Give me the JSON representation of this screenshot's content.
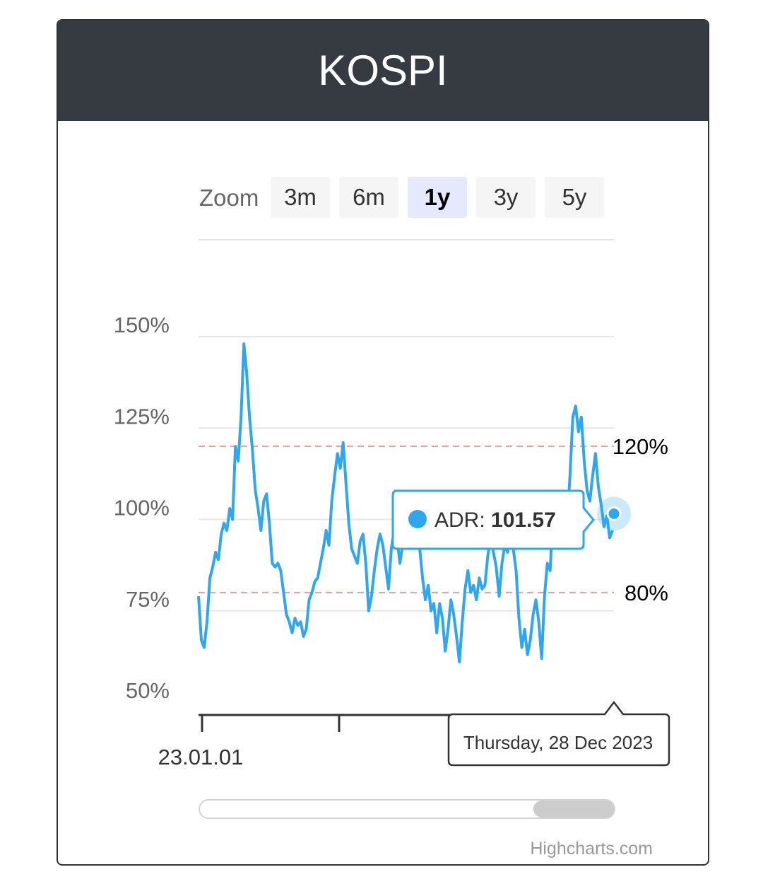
{
  "card": {
    "title": "KOSPI"
  },
  "zoom": {
    "label": "Zoom",
    "buttons": [
      {
        "label": "3m",
        "active": false
      },
      {
        "label": "6m",
        "active": false
      },
      {
        "label": "1y",
        "active": true
      },
      {
        "label": "3y",
        "active": false
      },
      {
        "label": "5y",
        "active": false
      }
    ]
  },
  "credits": "Highcharts.com",
  "tooltip": {
    "series": "ADR",
    "separator": ": ",
    "value": "101.57"
  },
  "date_label": "Thursday, 28 Dec 2023",
  "colors": {
    "series": "#2ea6f0",
    "plotline": "#e7a19a",
    "grid": "#e6e6e6",
    "header": "#363b42"
  },
  "chart_data": {
    "type": "line",
    "series": [
      {
        "name": "ADR",
        "values": [
          79,
          67,
          65,
          72,
          84,
          87,
          91,
          89,
          96,
          99,
          97,
          103,
          100,
          120,
          116,
          128,
          148,
          140,
          128,
          119,
          108,
          103,
          97,
          105,
          107,
          99,
          88,
          87,
          88,
          86,
          80,
          74,
          72,
          69,
          73,
          71,
          72,
          68,
          70,
          78,
          80,
          83,
          84,
          88,
          92,
          97,
          93,
          105,
          112,
          118,
          114,
          121,
          110,
          99,
          92,
          90,
          88,
          94,
          96,
          88,
          75,
          79,
          86,
          92,
          96,
          93,
          87,
          81,
          92,
          97,
          95,
          88,
          93,
          100,
          96,
          98,
          96,
          96,
          92,
          84,
          78,
          82,
          75,
          77,
          69,
          77,
          73,
          64,
          70,
          78,
          74,
          68,
          61,
          72,
          81,
          86,
          80,
          82,
          78,
          84,
          81,
          82,
          90,
          95,
          91,
          87,
          79,
          88,
          93,
          91,
          97,
          92,
          86,
          73,
          65,
          70,
          63,
          67,
          74,
          78,
          72,
          62,
          79,
          88,
          86,
          102,
          96,
          92,
          94,
          93,
          99,
          112,
          128,
          131,
          124,
          128,
          116,
          108,
          105,
          112,
          118,
          109,
          104,
          98,
          101,
          95,
          97
        ]
      }
    ],
    "x_axis": {
      "start_label": "23.01.01",
      "tick_labels": [
        "23.01.01"
      ]
    },
    "y_axis": {
      "tick_labels": [
        "50%",
        "75%",
        "100%",
        "125%",
        "150%"
      ],
      "ticks": [
        50,
        75,
        100,
        125,
        150
      ],
      "range": [
        50,
        150
      ]
    },
    "plot_lines": [
      {
        "value": 120,
        "label": "120%",
        "style": "dashed"
      },
      {
        "value": 80,
        "label": "80%",
        "style": "dashed"
      }
    ],
    "tooltip_point": {
      "value": 101.57,
      "date": "Thursday, 28 Dec 2023"
    },
    "grid": true,
    "legend": "none"
  }
}
